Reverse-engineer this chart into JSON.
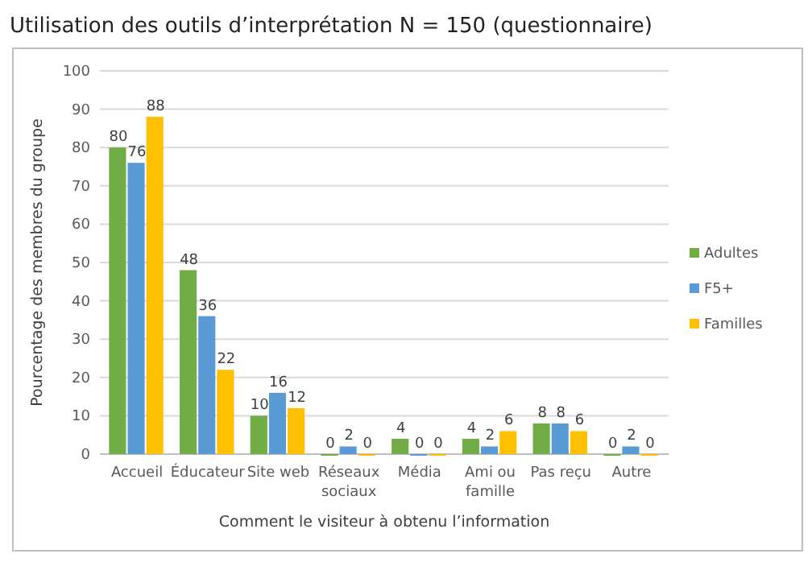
{
  "chart_data": {
    "type": "bar",
    "title": "Utilisation des outils d’interprétation N = 150 (questionnaire)",
    "xlabel": "Comment le visiteur à obtenu l’information",
    "ylabel": "Pourcentage des membres du groupe",
    "categories": [
      "Accueil",
      "Éducateur",
      "Site web",
      "Réseaux sociaux",
      "Média",
      "Ami ou famille",
      "Pas reçu",
      "Autre"
    ],
    "series": [
      {
        "name": "Adultes",
        "color": "#70ad47",
        "values": [
          80,
          48,
          10,
          0,
          4,
          4,
          8,
          0
        ]
      },
      {
        "name": "F5+",
        "color": "#5b9bd5",
        "values": [
          76,
          36,
          16,
          2,
          0,
          2,
          8,
          2
        ]
      },
      {
        "name": "Familles",
        "color": "#ffc000",
        "values": [
          88,
          22,
          12,
          0,
          0,
          6,
          6,
          0
        ]
      }
    ],
    "ylim": [
      0,
      100
    ],
    "yticks": [
      0,
      10,
      20,
      30,
      40,
      50,
      60,
      70,
      80,
      90,
      100
    ],
    "grid": "y",
    "legend": "right",
    "data_labels": true
  }
}
